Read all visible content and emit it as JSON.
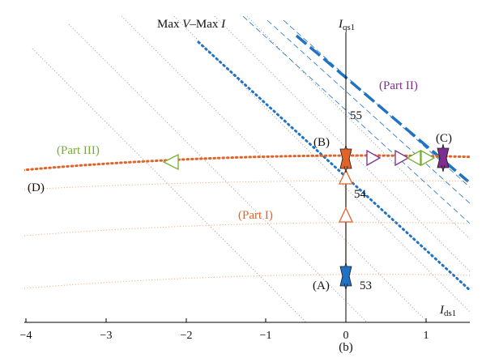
{
  "colors": {
    "orange": "#E0642A",
    "blue": "#1F72C4",
    "purple": "#7E2F8E",
    "green": "#77AC30",
    "gray": "#999999",
    "orange_light": "#F2A066"
  },
  "labels": {
    "max_v_max_i_prefix": "Max ",
    "max_v_max_i_v": "V",
    "max_v_max_i_mid": "–Max ",
    "max_v_max_i_i": "I",
    "y_axis_main": "I",
    "y_axis_sub": "qs1",
    "x_axis_main": "I",
    "x_axis_sub": "ds1",
    "part_i": "(Part I)",
    "part_ii": "(Part II)",
    "part_iii": "(Part III)",
    "point_a": "(A)",
    "point_b": "(B)",
    "point_c": "(C)",
    "point_d": "(D)",
    "eq_53": "53",
    "eq_54": "54",
    "eq_55": "55",
    "caption": "(b)"
  },
  "x_ticks": [
    "−4",
    "−3",
    "−2",
    "−1",
    "0",
    "1"
  ],
  "icons": {
    "star": "six-point-star-icon",
    "triangle": "triangle-marker-icon"
  }
}
